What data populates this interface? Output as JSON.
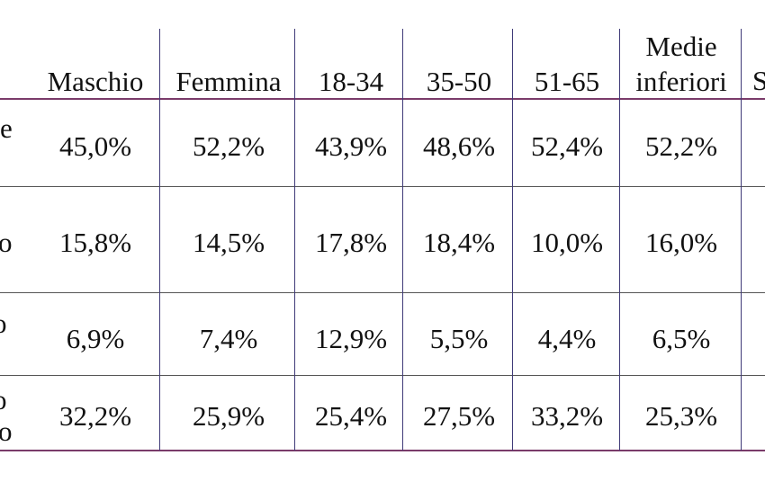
{
  "table": {
    "columns": [
      "Maschio",
      "Femmina",
      "18-34",
      "35-50",
      "51-65",
      "Medie inferiori",
      "S"
    ],
    "header_multiline": {
      "line1": "Medie",
      "line2": "inferiori"
    },
    "row_label_fragments": [
      [
        "e"
      ],
      [
        "o"
      ],
      [
        "o"
      ],
      [
        "o",
        "o"
      ]
    ],
    "rows": [
      [
        "45,0%",
        "52,2%",
        "43,9%",
        "48,6%",
        "52,4%",
        "52,2%"
      ],
      [
        "15,8%",
        "14,5%",
        "17,8%",
        "18,4%",
        "10,0%",
        "16,0%"
      ],
      [
        "6,9%",
        "7,4%",
        "12,9%",
        "5,5%",
        "4,4%",
        "6,5%"
      ],
      [
        "32,2%",
        "25,9%",
        "25,4%",
        "27,5%",
        "33,2%",
        "25,3%"
      ]
    ]
  },
  "colors": {
    "grid": "#3f3a78",
    "row_divider_top": "#7a3b6a",
    "row_divider": "#555555"
  }
}
